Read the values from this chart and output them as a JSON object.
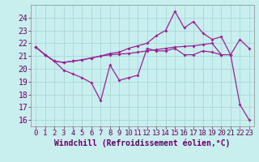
{
  "xlabel": "Windchill (Refroidissement éolien,°C)",
  "x": [
    0,
    1,
    2,
    3,
    4,
    5,
    6,
    7,
    8,
    9,
    10,
    11,
    12,
    13,
    14,
    15,
    16,
    17,
    18,
    19,
    20,
    21,
    22,
    23
  ],
  "series1_x": [
    0,
    1,
    2,
    3,
    4,
    5,
    6,
    7,
    8,
    9,
    10,
    11,
    12,
    13,
    14,
    15,
    16,
    17,
    18,
    19,
    20
  ],
  "series1_y": [
    21.7,
    21.1,
    20.6,
    19.9,
    19.6,
    19.3,
    18.9,
    17.5,
    20.3,
    19.1,
    19.3,
    19.5,
    21.6,
    21.4,
    21.4,
    21.6,
    21.1,
    21.1,
    21.4,
    21.3,
    21.1
  ],
  "series2_x": [
    0,
    1,
    2,
    3,
    4,
    5,
    6,
    7,
    8,
    9,
    10,
    11,
    12,
    13,
    14,
    15,
    16,
    17,
    18,
    19,
    20,
    21,
    22,
    23
  ],
  "series2_y": [
    21.7,
    21.1,
    20.6,
    20.5,
    20.6,
    20.7,
    20.85,
    21.0,
    21.1,
    21.15,
    21.2,
    21.3,
    21.4,
    21.5,
    21.6,
    21.7,
    21.75,
    21.8,
    21.9,
    22.0,
    21.1,
    21.1,
    22.3,
    21.6
  ],
  "series3_x": [
    0,
    1,
    2,
    3,
    4,
    5,
    6,
    7,
    8,
    9,
    10,
    11,
    12,
    13,
    14,
    15,
    16,
    17,
    18,
    19,
    20,
    21,
    22,
    23
  ],
  "series3_y": [
    21.7,
    21.1,
    20.6,
    20.5,
    20.6,
    20.7,
    20.85,
    21.0,
    21.2,
    21.3,
    21.6,
    21.8,
    22.0,
    22.6,
    23.0,
    24.5,
    23.2,
    23.7,
    22.8,
    22.3,
    22.5,
    21.1,
    17.2,
    16.0
  ],
  "line_color": "#992299",
  "bg_color": "#c8eeee",
  "ylim": [
    15.5,
    25.0
  ],
  "yticks": [
    16,
    17,
    18,
    19,
    20,
    21,
    22,
    23,
    24
  ],
  "grid_color": "#a8d8d8",
  "tick_color": "#660066",
  "label_color": "#660066",
  "fontsize": 6.5
}
